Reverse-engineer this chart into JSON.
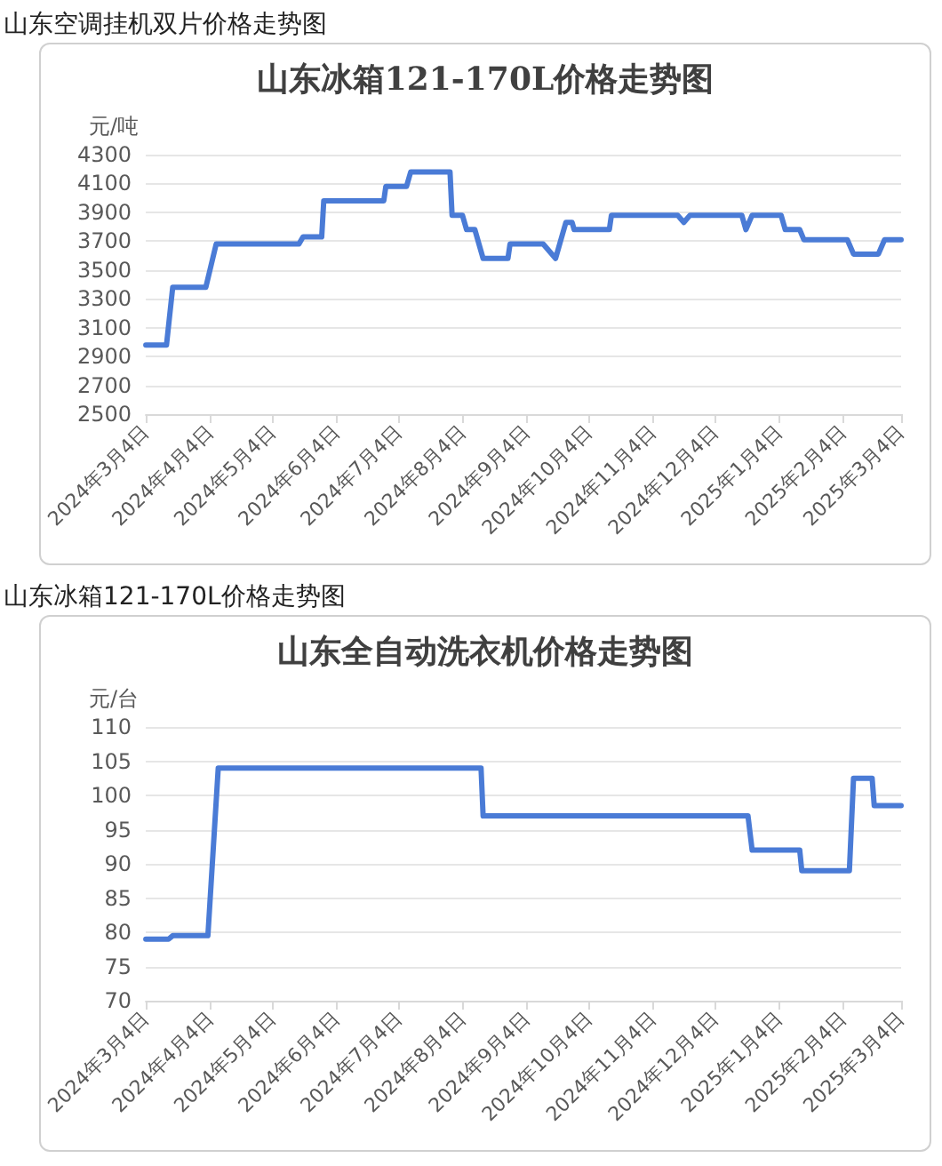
{
  "chart_data": [
    {
      "type": "line",
      "title": "山东冰箱121-170L价格走势图",
      "ylabel": "元/吨",
      "annotations": [
        "山东空调挂机双片价格走势图"
      ],
      "x": [
        "2024-03-04",
        "2024-03-14",
        "2024-03-17",
        "2024-04-02",
        "2024-04-07",
        "2024-05-17",
        "2024-05-19",
        "2024-05-28",
        "2024-05-29",
        "2024-06-27",
        "2024-06-28",
        "2024-07-08",
        "2024-07-10",
        "2024-07-29",
        "2024-07-30",
        "2024-08-04",
        "2024-08-06",
        "2024-08-10",
        "2024-08-14",
        "2024-08-26",
        "2024-08-27",
        "2024-09-12",
        "2024-09-18",
        "2024-09-23",
        "2024-09-26",
        "2024-09-27",
        "2024-10-14",
        "2024-10-15",
        "2024-11-16",
        "2024-11-19",
        "2024-11-22",
        "2024-12-17",
        "2024-12-19",
        "2024-12-22",
        "2025-01-05",
        "2025-01-07",
        "2025-01-14",
        "2025-01-16",
        "2025-02-06",
        "2025-02-09",
        "2025-02-21",
        "2025-02-24",
        "2025-03-04"
      ],
      "series": [
        {
          "color": "#4a7bd6",
          "values": [
            2980,
            2980,
            3380,
            3380,
            3680,
            3680,
            3730,
            3730,
            3980,
            3980,
            4080,
            4080,
            4180,
            4180,
            3880,
            3880,
            3780,
            3780,
            3580,
            3580,
            3680,
            3680,
            3580,
            3830,
            3830,
            3780,
            3780,
            3880,
            3880,
            3830,
            3880,
            3880,
            3780,
            3880,
            3880,
            3780,
            3780,
            3710,
            3710,
            3610,
            3610,
            3710,
            3710
          ]
        }
      ],
      "xlim": [
        "2024-03-04",
        "2025-03-04"
      ],
      "xticks": [
        {
          "value": "2024-03-04",
          "label": "2024年3月4日"
        },
        {
          "value": "2024-04-04",
          "label": "2024年4月4日"
        },
        {
          "value": "2024-05-04",
          "label": "2024年5月4日"
        },
        {
          "value": "2024-06-04",
          "label": "2024年6月4日"
        },
        {
          "value": "2024-07-04",
          "label": "2024年7月4日"
        },
        {
          "value": "2024-08-04",
          "label": "2024年8月4日"
        },
        {
          "value": "2024-09-04",
          "label": "2024年9月4日"
        },
        {
          "value": "2024-10-04",
          "label": "2024年10月4日"
        },
        {
          "value": "2024-11-04",
          "label": "2024年11月4日"
        },
        {
          "value": "2024-12-04",
          "label": "2024年12月4日"
        },
        {
          "value": "2025-01-04",
          "label": "2025年1月4日"
        },
        {
          "value": "2025-02-04",
          "label": "2025年2月4日"
        },
        {
          "value": "2025-03-04",
          "label": "2025年3月4日"
        }
      ],
      "ylim": [
        2500,
        4300
      ],
      "yticks": [
        2500,
        2700,
        2900,
        3100,
        3300,
        3500,
        3700,
        3900,
        4100,
        4300
      ],
      "grid": "y",
      "marker": "none",
      "line_style": "solid"
    },
    {
      "type": "line",
      "title": "山东全自动洗衣机价格走势图",
      "ylabel": "元/台",
      "annotations": [
        "山东冰箱121-170L价格走势图"
      ],
      "x": [
        "2024-03-04",
        "2024-03-15",
        "2024-03-17",
        "2024-04-03",
        "2024-04-08",
        "2024-08-13",
        "2024-08-14",
        "2024-12-20",
        "2024-12-22",
        "2025-01-14",
        "2025-01-15",
        "2025-02-07",
        "2025-02-09",
        "2025-02-18",
        "2025-02-19",
        "2025-03-04"
      ],
      "series": [
        {
          "color": "#4a7bd6",
          "values": [
            79,
            79,
            79.5,
            79.5,
            104,
            104,
            97,
            97,
            92,
            92,
            89,
            89,
            102.5,
            102.5,
            98.5,
            98.5
          ]
        }
      ],
      "xlim": [
        "2024-03-04",
        "2025-03-04"
      ],
      "xticks": [
        {
          "value": "2024-03-04",
          "label": "2024年3月4日"
        },
        {
          "value": "2024-04-04",
          "label": "2024年4月4日"
        },
        {
          "value": "2024-05-04",
          "label": "2024年5月4日"
        },
        {
          "value": "2024-06-04",
          "label": "2024年6月4日"
        },
        {
          "value": "2024-07-04",
          "label": "2024年7月4日"
        },
        {
          "value": "2024-08-04",
          "label": "2024年8月4日"
        },
        {
          "value": "2024-09-04",
          "label": "2024年9月4日"
        },
        {
          "value": "2024-10-04",
          "label": "2024年10月4日"
        },
        {
          "value": "2024-11-04",
          "label": "2024年11月4日"
        },
        {
          "value": "2024-12-04",
          "label": "2024年12月4日"
        },
        {
          "value": "2025-01-04",
          "label": "2025年1月4日"
        },
        {
          "value": "2025-02-04",
          "label": "2025年2月4日"
        },
        {
          "value": "2025-03-04",
          "label": "2025年3月4日"
        }
      ],
      "ylim": [
        70,
        110
      ],
      "yticks": [
        70,
        75,
        80,
        85,
        90,
        95,
        100,
        105,
        110
      ],
      "grid": "y",
      "marker": "none",
      "line_style": "solid"
    }
  ]
}
